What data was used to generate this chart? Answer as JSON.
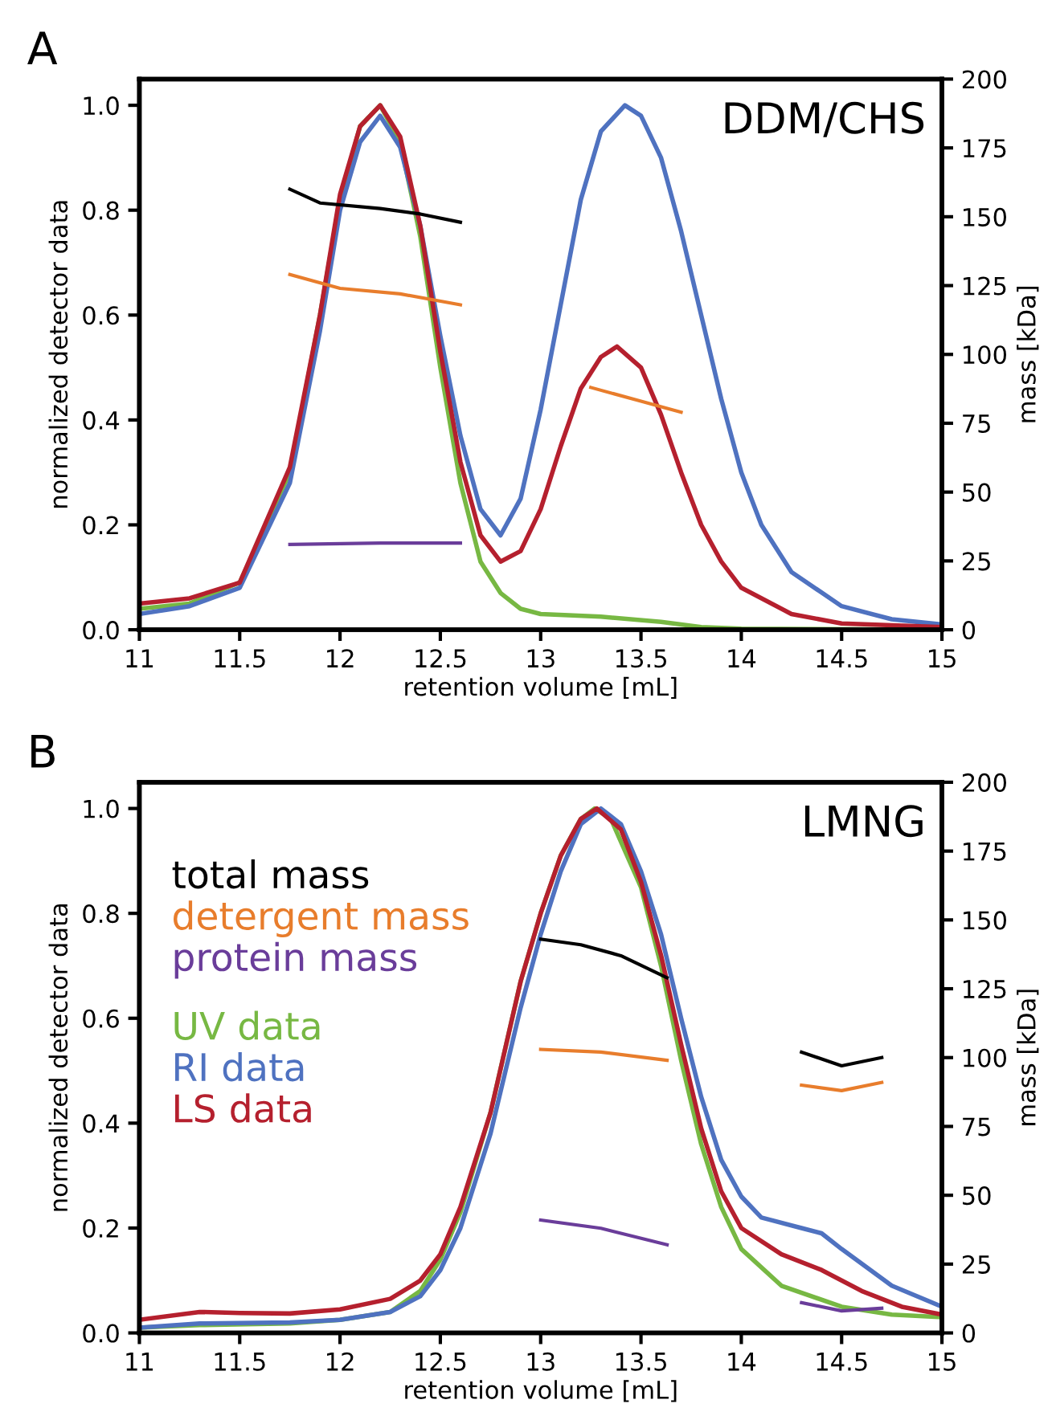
{
  "chart_data": [
    {
      "type": "line",
      "title": "A",
      "xlabel": "retention volume [mL]",
      "ylabel": "normalized detector data",
      "y2label": "mass [kDa]",
      "annotations": [
        "DDM/CHS"
      ],
      "xlim": [
        11,
        15
      ],
      "xticks": [
        11,
        11.5,
        12,
        12.5,
        13,
        13.5,
        14,
        14.5,
        15
      ],
      "ylim": [
        0,
        1.05
      ],
      "yticks": [
        {
          "value": 0,
          "label": "0.0"
        },
        {
          "value": 0.2,
          "label": "0.2"
        },
        {
          "value": 0.4,
          "label": "0.4"
        },
        {
          "value": 0.6,
          "label": "0.6"
        },
        {
          "value": 0.8,
          "label": "0.8"
        },
        {
          "value": 1,
          "label": "1.0"
        }
      ],
      "y2lim": [
        0,
        200
      ],
      "y2ticks": [
        0,
        25,
        50,
        75,
        100,
        125,
        150,
        175,
        200
      ],
      "grid": false,
      "marker": "none",
      "line_style": "solid",
      "series": [
        {
          "color": "#000000",
          "axis": "y2",
          "x": [
            11.75,
            11.9,
            12.2,
            12.4,
            12.6
          ],
          "values": [
            160,
            155,
            153,
            151,
            148
          ]
        },
        {
          "color": "#e87d2c",
          "axis": "y2",
          "x": [
            11.75,
            12.0,
            12.3,
            12.6,
            13.0,
            13.25,
            13.5,
            13.7
          ],
          "values": [
            129,
            124,
            122,
            118,
            null,
            88,
            83,
            79
          ]
        },
        {
          "color": "#6a3d9a",
          "axis": "y2",
          "x": [
            11.75,
            12.2,
            12.6
          ],
          "values": [
            31,
            31.5,
            31.5
          ]
        },
        {
          "color": "#77b843",
          "x": [
            11,
            11.25,
            11.5,
            11.75,
            11.9,
            12.0,
            12.1,
            12.2,
            12.3,
            12.4,
            12.5,
            12.6,
            12.7,
            12.8,
            12.9,
            13.0,
            13.3,
            13.6,
            13.8,
            14,
            15
          ],
          "values": [
            0.04,
            0.05,
            0.09,
            0.3,
            0.6,
            0.82,
            0.96,
            1.0,
            0.93,
            0.75,
            0.5,
            0.28,
            0.13,
            0.07,
            0.04,
            0.03,
            0.025,
            0.015,
            0.005,
            0.002,
            0
          ]
        },
        {
          "color": "#4f72c0",
          "x": [
            11,
            11.25,
            11.5,
            11.75,
            11.9,
            12.0,
            12.1,
            12.2,
            12.3,
            12.4,
            12.5,
            12.6,
            12.7,
            12.8,
            12.9,
            13.0,
            13.1,
            13.2,
            13.3,
            13.42,
            13.5,
            13.6,
            13.7,
            13.8,
            13.9,
            14.0,
            14.1,
            14.25,
            14.5,
            14.75,
            15
          ],
          "values": [
            0.03,
            0.045,
            0.08,
            0.28,
            0.57,
            0.8,
            0.93,
            0.98,
            0.92,
            0.77,
            0.56,
            0.37,
            0.23,
            0.18,
            0.25,
            0.42,
            0.62,
            0.82,
            0.95,
            1.0,
            0.98,
            0.9,
            0.76,
            0.6,
            0.44,
            0.3,
            0.2,
            0.11,
            0.045,
            0.02,
            0.01
          ]
        },
        {
          "color": "#b5202e",
          "x": [
            11,
            11.25,
            11.5,
            11.75,
            11.9,
            12.0,
            12.1,
            12.2,
            12.3,
            12.4,
            12.5,
            12.6,
            12.7,
            12.8,
            12.9,
            13.0,
            13.1,
            13.2,
            13.3,
            13.38,
            13.5,
            13.6,
            13.7,
            13.8,
            13.9,
            14.0,
            14.25,
            14.5,
            15
          ],
          "values": [
            0.05,
            0.06,
            0.09,
            0.31,
            0.6,
            0.83,
            0.96,
            1.0,
            0.94,
            0.77,
            0.53,
            0.32,
            0.18,
            0.13,
            0.15,
            0.23,
            0.35,
            0.46,
            0.52,
            0.54,
            0.5,
            0.41,
            0.3,
            0.2,
            0.13,
            0.08,
            0.03,
            0.012,
            0.005
          ]
        }
      ]
    },
    {
      "type": "line",
      "title": "B",
      "xlabel": "retention volume [mL]",
      "ylabel": "normalized detector data",
      "y2label": "mass [kDa]",
      "annotations": [
        "LMNG"
      ],
      "xlim": [
        11,
        15
      ],
      "xticks": [
        11,
        11.5,
        12,
        12.5,
        13,
        13.5,
        14,
        14.5,
        15
      ],
      "ylim": [
        0,
        1.05
      ],
      "yticks": [
        {
          "value": 0,
          "label": "0.0"
        },
        {
          "value": 0.2,
          "label": "0.2"
        },
        {
          "value": 0.4,
          "label": "0.4"
        },
        {
          "value": 0.6,
          "label": "0.6"
        },
        {
          "value": 0.8,
          "label": "0.8"
        },
        {
          "value": 1,
          "label": "1.0"
        }
      ],
      "y2lim": [
        0,
        200
      ],
      "y2ticks": [
        0,
        25,
        50,
        75,
        100,
        125,
        150,
        175,
        200
      ],
      "grid": false,
      "marker": "none",
      "line_style": "solid",
      "legend": "top left",
      "series": [
        {
          "name": "total mass",
          "color": "#000000",
          "axis": "y2",
          "x": [
            13.0,
            13.2,
            13.4,
            13.63,
            14.0,
            14.3,
            14.5,
            14.7
          ],
          "values": [
            143,
            141,
            137,
            129,
            null,
            102,
            97,
            100
          ]
        },
        {
          "name": "detergent mass",
          "color": "#e87d2c",
          "axis": "y2",
          "x": [
            13.0,
            13.3,
            13.63,
            14.0,
            14.3,
            14.5,
            14.7
          ],
          "values": [
            103,
            102,
            99,
            null,
            90,
            88,
            91
          ]
        },
        {
          "name": "protein mass",
          "color": "#6a3d9a",
          "axis": "y2",
          "x": [
            13.0,
            13.3,
            13.63,
            14.0,
            14.3,
            14.5,
            14.7
          ],
          "values": [
            41,
            38,
            32,
            null,
            11,
            8,
            9
          ]
        },
        {
          "name": "UV data",
          "color": "#77b843",
          "x": [
            11,
            11.3,
            11.75,
            12,
            12.25,
            12.4,
            12.5,
            12.6,
            12.75,
            12.9,
            13.0,
            13.1,
            13.2,
            13.27,
            13.35,
            13.5,
            13.6,
            13.7,
            13.8,
            13.9,
            14.0,
            14.2,
            14.5,
            14.75,
            15
          ],
          "values": [
            0.01,
            0.015,
            0.018,
            0.025,
            0.04,
            0.08,
            0.14,
            0.23,
            0.42,
            0.67,
            0.8,
            0.91,
            0.98,
            1.0,
            0.98,
            0.85,
            0.7,
            0.52,
            0.36,
            0.24,
            0.16,
            0.09,
            0.05,
            0.035,
            0.03
          ]
        },
        {
          "name": "RI data",
          "color": "#4f72c0",
          "x": [
            11,
            11.3,
            11.75,
            12,
            12.25,
            12.4,
            12.5,
            12.6,
            12.75,
            12.9,
            13.0,
            13.1,
            13.2,
            13.3,
            13.4,
            13.5,
            13.6,
            13.7,
            13.8,
            13.9,
            14.0,
            14.1,
            14.3,
            14.4,
            14.5,
            14.75,
            15
          ],
          "values": [
            0.01,
            0.018,
            0.02,
            0.025,
            0.04,
            0.07,
            0.12,
            0.2,
            0.38,
            0.62,
            0.76,
            0.88,
            0.97,
            1.0,
            0.97,
            0.88,
            0.76,
            0.6,
            0.45,
            0.33,
            0.26,
            0.22,
            0.2,
            0.19,
            0.16,
            0.09,
            0.05
          ]
        },
        {
          "name": "LS data",
          "color": "#b5202e",
          "x": [
            11,
            11.3,
            11.5,
            11.75,
            12,
            12.25,
            12.4,
            12.5,
            12.6,
            12.75,
            12.9,
            13.0,
            13.1,
            13.2,
            13.28,
            13.4,
            13.5,
            13.6,
            13.7,
            13.8,
            13.9,
            14.0,
            14.2,
            14.4,
            14.6,
            14.8,
            15
          ],
          "values": [
            0.025,
            0.04,
            0.038,
            0.037,
            0.045,
            0.065,
            0.1,
            0.15,
            0.24,
            0.42,
            0.67,
            0.8,
            0.91,
            0.98,
            1.0,
            0.96,
            0.86,
            0.72,
            0.55,
            0.39,
            0.27,
            0.2,
            0.15,
            0.12,
            0.08,
            0.05,
            0.035
          ]
        }
      ]
    }
  ]
}
